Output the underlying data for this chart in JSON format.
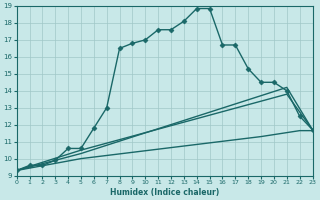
{
  "xlabel": "Humidex (Indice chaleur)",
  "bg_color": "#c8e8e8",
  "grid_color": "#a0c8c8",
  "line_color": "#1a6868",
  "xlim": [
    0,
    23
  ],
  "ylim": [
    9,
    19
  ],
  "xticks": [
    0,
    1,
    2,
    3,
    4,
    5,
    6,
    7,
    8,
    9,
    10,
    11,
    12,
    13,
    14,
    15,
    16,
    17,
    18,
    19,
    20,
    21,
    22,
    23
  ],
  "yticks": [
    9,
    10,
    11,
    12,
    13,
    14,
    15,
    16,
    17,
    18,
    19
  ],
  "series1_x": [
    0,
    1,
    2,
    3,
    4,
    5,
    6,
    7,
    8,
    9,
    10,
    11,
    12,
    13,
    14,
    15,
    16,
    17,
    18,
    19,
    20,
    21,
    22,
    23
  ],
  "series1_y": [
    9.3,
    9.6,
    9.6,
    9.9,
    10.6,
    10.6,
    11.8,
    13.0,
    16.5,
    16.8,
    17.0,
    17.6,
    17.6,
    18.1,
    18.85,
    18.85,
    16.7,
    16.7,
    15.3,
    14.5,
    14.5,
    14.0,
    12.5,
    11.7
  ],
  "series2_x": [
    0,
    5,
    21,
    23
  ],
  "series2_y": [
    9.3,
    10.5,
    13.8,
    11.7
  ],
  "series3_x": [
    0,
    5,
    21,
    23
  ],
  "series3_y": [
    9.3,
    10.3,
    14.2,
    11.7
  ],
  "series4_x": [
    0,
    5,
    19,
    22,
    23
  ],
  "series4_y": [
    9.3,
    10.0,
    11.3,
    11.65,
    11.65
  ],
  "marker_size": 2.5,
  "line_width": 1.0
}
